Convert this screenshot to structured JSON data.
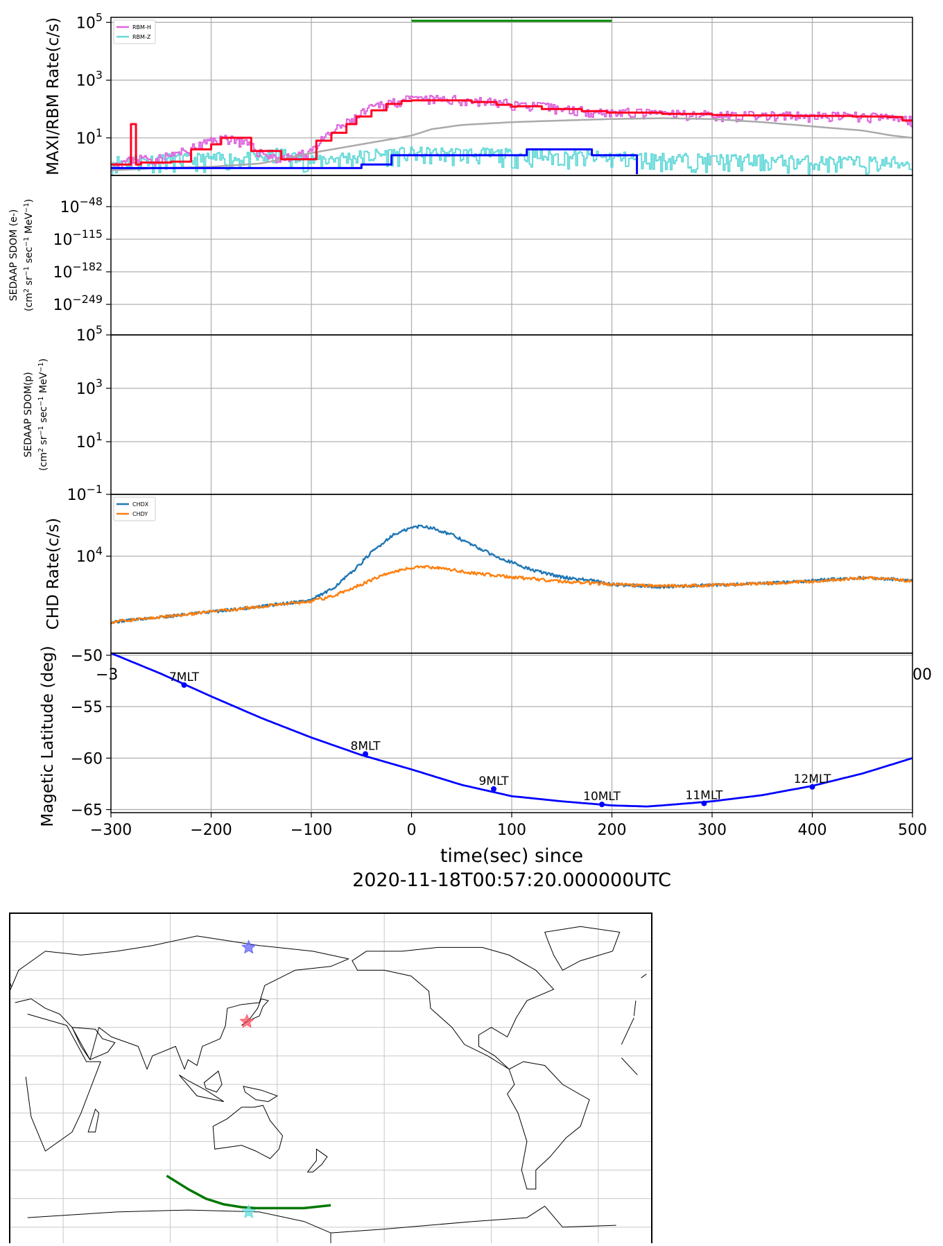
{
  "colors": {
    "rbm_h": "#dd66dd",
    "rbm_z": "#66d9d9",
    "rbm_h_binned": "#ff0022",
    "rbm_z_binned": "#0000ff",
    "background_grey": "#aaaaaa",
    "gti_bar": "#008800",
    "chdx": "#1f77b4",
    "chdy": "#ff7f0e",
    "latitude": "#0000ff",
    "track": "#007700",
    "grid": "#b0b0b0",
    "star_blue": "#6666ff",
    "star_red": "#ff5566",
    "star_cyan": "#66dddd"
  },
  "chart_data": [
    {
      "type": "line",
      "panel": "maxi_rbm",
      "ylabel": "MAXI/RBM Rate(c/s)",
      "yscale": "log",
      "xlim": [
        -300,
        500
      ],
      "ylim": [
        0.5,
        150000
      ],
      "yticks": [
        {
          "v": 10,
          "label": "10",
          "exp": "1"
        },
        {
          "v": 1000,
          "label": "10",
          "exp": "3"
        },
        {
          "v": 100000,
          "label": "10",
          "exp": "5"
        }
      ],
      "legend": [
        "RBM-H",
        "RBM-Z"
      ],
      "legend_position": "upper-left",
      "gti_bar": [
        0,
        200
      ],
      "series": [
        {
          "name": "RBM-H",
          "noisy": true,
          "x": [
            -300,
            -285,
            -270,
            -255,
            -240,
            -225,
            -210,
            -195,
            -180,
            -165,
            -150,
            -135,
            -120,
            -105,
            -90,
            -75,
            -60,
            -45,
            -30,
            -15,
            0,
            20,
            40,
            60,
            80,
            100,
            120,
            140,
            160,
            180,
            200,
            240,
            280,
            320,
            360,
            400,
            440,
            480,
            500
          ],
          "y": [
            1.2,
            1.5,
            2,
            1.8,
            2.5,
            3.5,
            6,
            9,
            10,
            6,
            3,
            2,
            2,
            3,
            8,
            20,
            40,
            90,
            150,
            190,
            210,
            215,
            210,
            195,
            170,
            150,
            130,
            110,
            95,
            85,
            78,
            70,
            65,
            60,
            58,
            55,
            56,
            50,
            40
          ]
        },
        {
          "name": "RBM-Z",
          "noisy": true,
          "x": [
            -300,
            -250,
            -200,
            -150,
            -130,
            -120,
            -100,
            -50,
            -20,
            0,
            50,
            100,
            150,
            200,
            250,
            300,
            350,
            400,
            450,
            500
          ],
          "y": [
            1.3,
            1.5,
            1.6,
            1.8,
            2.5,
            1.8,
            1.5,
            2.0,
            2.5,
            2.5,
            2.5,
            2.2,
            2.0,
            1.8,
            1.6,
            1.5,
            1.4,
            1.3,
            1.2,
            1.2
          ]
        },
        {
          "name": "",
          "style": "step",
          "x": [
            -300,
            -282,
            -280,
            -275,
            -270,
            -240,
            -220,
            -200,
            -190,
            -160,
            -130,
            -95,
            -80,
            -65,
            -55,
            -40,
            -25,
            -10,
            0,
            60,
            85,
            100,
            105,
            130,
            170,
            195,
            250,
            300,
            320,
            380,
            440,
            475,
            490,
            500
          ],
          "y": [
            1.2,
            1.2,
            30,
            1.2,
            1.4,
            1.5,
            4,
            6,
            10,
            3.5,
            1.8,
            8,
            15,
            30,
            55,
            90,
            150,
            190,
            200,
            175,
            140,
            120,
            125,
            100,
            85,
            75,
            68,
            62,
            60,
            58,
            55,
            53,
            40,
            40
          ]
        },
        {
          "name": "",
          "style": "step",
          "x": [
            -300,
            -50,
            -20,
            0,
            115,
            180,
            225,
            225
          ],
          "y": [
            0.9,
            1.2,
            2.5,
            2.5,
            4,
            2.5,
            2.5,
            0.55
          ]
        },
        {
          "name": "",
          "x": [
            -300,
            -250,
            -200,
            -150,
            -100,
            -50,
            0,
            20,
            50,
            100,
            150,
            200,
            250,
            300,
            350,
            400,
            450,
            480,
            500
          ],
          "y": [
            0.75,
            0.9,
            1.0,
            1.3,
            3,
            6,
            12,
            20,
            28,
            35,
            40,
            45,
            48,
            45,
            35,
            25,
            18,
            12,
            10
          ]
        }
      ]
    },
    {
      "type": "line",
      "panel": "sedaap_e",
      "ylabel": "SEDAAP SDOM (e-)",
      "ylabel2_parts": [
        "(cm",
        "2",
        " sr",
        "−1",
        " sec",
        "−1",
        " MeV",
        "−1",
        ")"
      ],
      "yscale": "log",
      "xlim": [
        -300,
        500
      ],
      "yticks": [
        {
          "label": "10",
          "exp": "−48"
        },
        {
          "label": "10",
          "exp": "−115"
        },
        {
          "label": "10",
          "exp": "−182"
        },
        {
          "label": "10",
          "exp": "−249"
        }
      ],
      "series": []
    },
    {
      "type": "line",
      "panel": "sedaap_p",
      "ylabel": "SEDAAP SDOM(p)",
      "ylabel2_parts": [
        "(cm",
        "2",
        " sr",
        "−1",
        " sec",
        "−1",
        " MeV",
        "−1",
        ")"
      ],
      "yscale": "log",
      "xlim": [
        -300,
        500
      ],
      "yticks": [
        {
          "label": "10",
          "exp": "5"
        },
        {
          "label": "10",
          "exp": "3"
        },
        {
          "label": "10",
          "exp": "1"
        },
        {
          "label": "10",
          "exp": "−1"
        }
      ],
      "series": []
    },
    {
      "type": "line",
      "panel": "chd",
      "ylabel": "CHD Rate(c/s)",
      "yscale": "log",
      "xlim": [
        -300,
        500
      ],
      "ylim": [
        800,
        50000
      ],
      "yticks": [
        {
          "v": 10000,
          "label": "10",
          "exp": "4"
        }
      ],
      "legend": [
        "CHDX",
        "CHDY"
      ],
      "legend_position": "upper-left",
      "series": [
        {
          "name": "CHDX",
          "noisy": true,
          "x": [
            -300,
            -250,
            -200,
            -150,
            -100,
            -80,
            -60,
            -40,
            -20,
            0,
            10,
            20,
            40,
            60,
            80,
            100,
            120,
            150,
            180,
            200,
            250,
            300,
            350,
            400,
            450,
            480,
            500
          ],
          "y": [
            1800,
            2050,
            2350,
            2700,
            3200,
            4200,
            6500,
            11000,
            17000,
            21000,
            22000,
            21000,
            17500,
            13500,
            10500,
            8500,
            7000,
            5800,
            5300,
            4800,
            4500,
            4700,
            4900,
            5300,
            5700,
            5500,
            5200
          ]
        },
        {
          "name": "CHDY",
          "noisy": true,
          "x": [
            -300,
            -250,
            -200,
            -150,
            -100,
            -80,
            -60,
            -40,
            -20,
            0,
            10,
            20,
            40,
            60,
            80,
            100,
            150,
            200,
            250,
            300,
            350,
            400,
            450,
            480,
            500
          ],
          "y": [
            1800,
            2050,
            2350,
            2700,
            3100,
            3500,
            4300,
            5400,
            6600,
            7400,
            7600,
            7500,
            7000,
            6500,
            6100,
            5800,
            5200,
            4800,
            4600,
            4700,
            4900,
            5200,
            5700,
            5500,
            5200
          ]
        }
      ]
    },
    {
      "type": "line",
      "panel": "latitude",
      "ylabel": "Magetic Latitude  (deg)",
      "xlabel": "time(sec) since",
      "xlabel2": "2020-11-18T00:57:20.000000UTC",
      "xlim": [
        -300,
        500
      ],
      "ylim": [
        -65.3,
        -49.8
      ],
      "yticks": [
        {
          "v": -50,
          "label": "−50"
        },
        {
          "v": -55,
          "label": "−55"
        },
        {
          "v": -60,
          "label": "−60"
        },
        {
          "v": -65,
          "label": "−65"
        }
      ],
      "xticks": [
        {
          "v": -300,
          "label": "−300"
        },
        {
          "v": -200,
          "label": "−200"
        },
        {
          "v": -100,
          "label": "−100"
        },
        {
          "v": 0,
          "label": "0"
        },
        {
          "v": 100,
          "label": "100"
        },
        {
          "v": 200,
          "label": "200"
        },
        {
          "v": 300,
          "label": "300"
        },
        {
          "v": 400,
          "label": "400"
        },
        {
          "v": 500,
          "label": "500"
        }
      ],
      "series": [
        {
          "name": "",
          "x": [
            -300,
            -250,
            -200,
            -150,
            -100,
            -50,
            0,
            50,
            100,
            150,
            200,
            235,
            250,
            300,
            350,
            400,
            450,
            500
          ],
          "y": [
            -49.8,
            -51.8,
            -54.0,
            -56.1,
            -58.0,
            -59.7,
            -61.1,
            -62.6,
            -63.7,
            -64.2,
            -64.6,
            -64.7,
            -64.6,
            -64.2,
            -63.6,
            -62.7,
            -61.5,
            -60.0
          ]
        }
      ],
      "annotations": [
        {
          "x": -227,
          "y": -52.9,
          "label": "7MLT"
        },
        {
          "x": -46,
          "y": -59.6,
          "label": "8MLT"
        },
        {
          "x": 82,
          "y": -63.0,
          "label": "9MLT"
        },
        {
          "x": 190,
          "y": -64.5,
          "label": "10MLT"
        },
        {
          "x": 292,
          "y": -64.4,
          "label": "11MLT"
        },
        {
          "x": 400,
          "y": -62.8,
          "label": "12MLT"
        }
      ]
    },
    {
      "type": "map",
      "panel": "ground_track",
      "projection": "plate-carree, centered 180",
      "markers": [
        {
          "lon": 134,
          "lat": 72,
          "color": "star_blue"
        },
        {
          "lon": 133,
          "lat": 33,
          "color": "star_red"
        },
        {
          "lon": 134,
          "lat": -67,
          "color": "star_cyan"
        }
      ],
      "track": {
        "lon": [
          88,
          100,
          110,
          120,
          130,
          138,
          150,
          165,
          180
        ],
        "lat": [
          -48,
          -55,
          -60,
          -63,
          -64.5,
          -65,
          -65,
          -65,
          -63.5
        ]
      }
    }
  ]
}
